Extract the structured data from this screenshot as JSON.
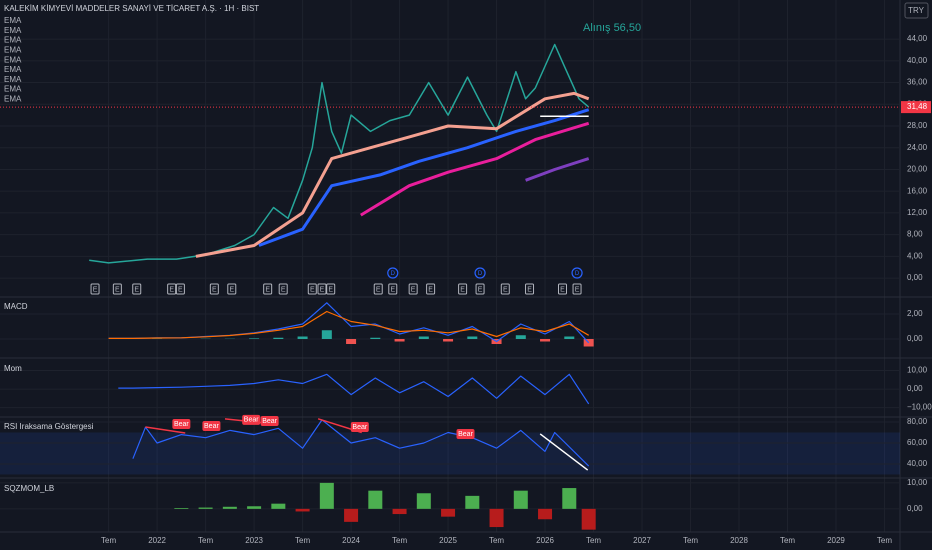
{
  "chart_data": [
    {
      "type": "line",
      "title": "KALEKİM KİMYEVİ MADDELER SANAYİ VE TİCARET A.Ş. · 1H · BIST",
      "indicator_labels": [
        "EMA",
        "EMA",
        "EMA",
        "EMA",
        "EMA",
        "EMA",
        "EMA",
        "EMA",
        "EMA"
      ],
      "currency": "TRY",
      "annotation": "Alınış 56,50",
      "xlim": [
        2020.38,
        2029.66
      ],
      "ylim": [
        -3.3,
        51.2
      ],
      "yticks": [
        {
          "value": 0,
          "label": "0,00"
        },
        {
          "value": 4,
          "label": "4,00"
        },
        {
          "value": 8,
          "label": "8,00"
        },
        {
          "value": 12,
          "label": "12,00"
        },
        {
          "value": 16,
          "label": "16,00"
        },
        {
          "value": 20,
          "label": "20,00"
        },
        {
          "value": 24,
          "label": "24,00"
        },
        {
          "value": 28,
          "label": "28,00"
        },
        {
          "value": 32,
          "label": "32,00"
        },
        {
          "value": 36,
          "label": "36,00"
        },
        {
          "value": 40,
          "label": "40,00"
        },
        {
          "value": 44,
          "label": "44,00"
        }
      ],
      "last_price": {
        "value": 31.48,
        "label": "31,48"
      },
      "series": [
        {
          "color": "#26a69a",
          "x": [
            2021.3,
            2021.5,
            2021.9,
            2022.2,
            2022.5,
            2022.8,
            2023.0,
            2023.2,
            2023.35,
            2023.5,
            2023.6,
            2023.7,
            2023.8,
            2023.9,
            2024.0,
            2024.2,
            2024.4,
            2024.6,
            2024.8,
            2025.0,
            2025.2,
            2025.4,
            2025.5,
            2025.7,
            2025.8,
            2025.9,
            2026.1,
            2026.2,
            2026.35,
            2026.45
          ],
          "values": [
            3.3,
            2.8,
            3.5,
            3.5,
            4.3,
            6,
            8,
            13,
            11,
            18,
            24,
            36,
            27,
            23,
            30,
            27,
            29,
            30,
            36,
            30,
            37,
            30,
            27,
            38,
            33,
            35,
            43,
            39,
            33,
            31.48
          ]
        },
        {
          "color": "#f4a090",
          "x": [
            2022.4,
            2023.0,
            2023.5,
            2023.8,
            2024.2,
            2024.6,
            2025.0,
            2025.5,
            2026.0,
            2026.3,
            2026.45
          ],
          "values": [
            4,
            6,
            12,
            22,
            24,
            26,
            28,
            27.5,
            33,
            34,
            33
          ]
        },
        {
          "color": "#2962ff",
          "x": [
            2023.05,
            2023.5,
            2023.8,
            2024.3,
            2024.7,
            2025.2,
            2025.7,
            2026.1,
            2026.45
          ],
          "values": [
            6,
            9,
            17,
            19,
            21.5,
            24,
            27,
            29,
            31
          ]
        },
        {
          "color": "#e91e9c",
          "x": [
            2024.1,
            2024.6,
            2025.0,
            2025.5,
            2025.9,
            2026.45
          ],
          "values": [
            11.6,
            17,
            19.5,
            22,
            25.5,
            28.5
          ]
        },
        {
          "color": "#7e3fbf",
          "x": [
            2025.8,
            2026.1,
            2026.45
          ],
          "values": [
            18,
            20,
            22
          ]
        }
      ],
      "lines": [
        {
          "color": "#ffffff",
          "x": [
            2025.95,
            2026.45
          ],
          "y": [
            29.8,
            29.8
          ]
        }
      ],
      "events": {
        "label": "E",
        "x": [
          2021.36,
          2021.59,
          2021.79,
          2022.15,
          2022.24,
          2022.59,
          2022.77,
          2023.14,
          2023.3,
          2023.6,
          2023.7,
          2023.79,
          2024.28,
          2024.43,
          2024.64,
          2024.82,
          2025.15,
          2025.33,
          2025.59,
          2025.84,
          2026.18,
          2026.33
        ]
      },
      "dividends": {
        "label": "D",
        "x": [
          2024.43,
          2025.33,
          2026.33
        ]
      }
    },
    {
      "type": "line",
      "title": "MACD",
      "xlim": [
        2020.38,
        2029.66
      ],
      "ylim": [
        -1.36,
        3.28
      ],
      "yticks": [
        {
          "value": 0,
          "label": "0,00"
        },
        {
          "value": 2,
          "label": "2,00"
        }
      ],
      "series": [
        {
          "color": "#2962ff",
          "x": [
            2021.5,
            2021.75,
            2022,
            2022.25,
            2022.5,
            2022.75,
            2023,
            2023.25,
            2023.5,
            2023.75,
            2024,
            2024.25,
            2024.5,
            2024.75,
            2025,
            2025.25,
            2025.5,
            2025.75,
            2026,
            2026.25,
            2026.45
          ],
          "values": [
            0.05,
            0.05,
            0.1,
            0.1,
            0.2,
            0.3,
            0.5,
            0.8,
            1.2,
            2.9,
            1.0,
            1.2,
            0.4,
            0.9,
            0.3,
            1.0,
            -0.2,
            1.2,
            0.4,
            1.4,
            -0.3
          ]
        },
        {
          "color": "#ff6d00",
          "x": [
            2021.5,
            2021.75,
            2022,
            2022.25,
            2022.5,
            2022.75,
            2023,
            2023.25,
            2023.5,
            2023.75,
            2024,
            2024.25,
            2024.5,
            2024.75,
            2025,
            2025.25,
            2025.5,
            2025.75,
            2026,
            2026.25,
            2026.45
          ],
          "values": [
            0.05,
            0.05,
            0.08,
            0.1,
            0.18,
            0.28,
            0.45,
            0.7,
            1.0,
            2.2,
            1.4,
            1.1,
            0.6,
            0.7,
            0.5,
            0.8,
            0.2,
            0.9,
            0.6,
            1.2,
            0.3
          ]
        }
      ],
      "histogram": {
        "positive_color": "#26a69a",
        "negative_color": "#ef5350",
        "x": [
          2021.5,
          2021.75,
          2022,
          2022.25,
          2022.5,
          2022.75,
          2023,
          2023.25,
          2023.5,
          2023.75,
          2024,
          2024.25,
          2024.5,
          2024.75,
          2025,
          2025.25,
          2025.5,
          2025.75,
          2026,
          2026.25,
          2026.45
        ],
        "values": [
          0,
          0,
          0.02,
          0,
          0.02,
          0.02,
          0.05,
          0.1,
          0.2,
          0.7,
          -0.4,
          0.1,
          -0.2,
          0.2,
          -0.2,
          0.2,
          -0.4,
          0.3,
          -0.2,
          0.2,
          -0.6
        ]
      }
    },
    {
      "type": "line",
      "title": "Mom",
      "xlim": [
        2020.38,
        2029.66
      ],
      "ylim": [
        -14,
        15.7
      ],
      "yticks": [
        {
          "value": -10,
          "label": "−10,00"
        },
        {
          "value": 0,
          "label": "0,00"
        },
        {
          "value": 10,
          "label": "10,00"
        }
      ],
      "series": [
        {
          "color": "#2962ff",
          "x": [
            2021.6,
            2021.75,
            2022,
            2022.25,
            2022.5,
            2022.75,
            2023,
            2023.25,
            2023.5,
            2023.75,
            2024,
            2024.25,
            2024.5,
            2024.75,
            2025,
            2025.25,
            2025.5,
            2025.75,
            2026,
            2026.25,
            2026.45
          ],
          "values": [
            0.5,
            0.5,
            0.8,
            1,
            1.5,
            2,
            3,
            5,
            3,
            8,
            -3,
            6,
            -2,
            4,
            -4,
            6,
            -5,
            7,
            -3,
            8,
            -8
          ]
        }
      ]
    },
    {
      "type": "line",
      "title": "RSI Iraksama Göstergesi",
      "xlim": [
        2020.38,
        2029.66
      ],
      "ylim": [
        27.6,
        83.8
      ],
      "yticks": [
        {
          "value": 40,
          "label": "40,00"
        },
        {
          "value": 60,
          "label": "60,00"
        },
        {
          "value": 80,
          "label": "80,00"
        }
      ],
      "band": [
        30,
        70
      ],
      "series": [
        {
          "color": "#2962ff",
          "x": [
            2021.75,
            2021.88,
            2022,
            2022.25,
            2022.5,
            2022.75,
            2023,
            2023.25,
            2023.5,
            2023.7,
            2024,
            2024.25,
            2024.5,
            2024.75,
            2025,
            2025.25,
            2025.5,
            2025.75,
            2026,
            2026.1,
            2026.45
          ],
          "values": [
            45,
            75,
            60,
            68,
            65,
            72,
            68,
            74,
            55,
            82,
            60,
            65,
            55,
            60,
            70,
            65,
            55,
            72,
            52,
            70,
            38
          ]
        }
      ],
      "lines": [
        {
          "color": "#f23645",
          "x": [
            2021.88,
            2022.29
          ],
          "y": [
            75.2,
            69.5
          ]
        },
        {
          "color": "#f23645",
          "x": [
            2022.7,
            2023.22
          ],
          "y": [
            83,
            78
          ]
        },
        {
          "color": "#f23645",
          "x": [
            2023.66,
            2024.11
          ],
          "y": [
            83,
            70
          ]
        },
        {
          "color": "#ffffff",
          "x": [
            2025.95,
            2026.44
          ],
          "y": [
            68.6,
            34.2
          ]
        }
      ],
      "annotations": [
        {
          "label": "Bear",
          "x": 2022.25,
          "y": 78.1
        },
        {
          "label": "Bear",
          "x": 2022.56,
          "y": 76.2
        },
        {
          "label": "Bear",
          "x": 2022.97,
          "y": 82
        },
        {
          "label": "Bear",
          "x": 2023.16,
          "y": 81
        },
        {
          "label": "Bear",
          "x": 2024.09,
          "y": 75.2
        },
        {
          "label": "Bear",
          "x": 2025.18,
          "y": 68.6
        }
      ]
    },
    {
      "type": "bar",
      "title": "SQZMOM_LB",
      "xlim": [
        2020.38,
        2029.66
      ],
      "ylim": [
        -8.9,
        11.1
      ],
      "yticks": [
        {
          "value": 0,
          "label": "0,00"
        },
        {
          "value": 10,
          "label": "10,00"
        }
      ],
      "positive_color": "#4caf50",
      "negative_color": "#b71c1c",
      "x": [
        2021.5,
        2021.75,
        2022,
        2022.25,
        2022.5,
        2022.75,
        2023,
        2023.25,
        2023.5,
        2023.75,
        2024,
        2024.25,
        2024.5,
        2024.75,
        2025,
        2025.25,
        2025.5,
        2025.75,
        2026,
        2026.25,
        2026.45
      ],
      "values": [
        0,
        0,
        0,
        0.3,
        0.5,
        0.8,
        1,
        2,
        -1,
        10,
        -5,
        7,
        -2,
        6,
        -3,
        5,
        -7,
        7,
        -4,
        8,
        -8
      ],
      "xticks": [
        {
          "value": 2021.5,
          "label": "Tem"
        },
        2022,
        {
          "value": 2022.5,
          "label": "Tem"
        },
        2023,
        {
          "value": 2023.5,
          "label": "Tem"
        },
        2024,
        {
          "value": 2024.5,
          "label": "Tem"
        },
        2025,
        {
          "value": 2025.5,
          "label": "Tem"
        },
        2026,
        {
          "value": 2026.5,
          "label": "Tem"
        },
        2027,
        {
          "value": 2027.5,
          "label": "Tem"
        },
        2028,
        {
          "value": 2028.5,
          "label": "Tem"
        },
        2029,
        {
          "value": 2029.5,
          "label": "Tem"
        }
      ]
    }
  ]
}
